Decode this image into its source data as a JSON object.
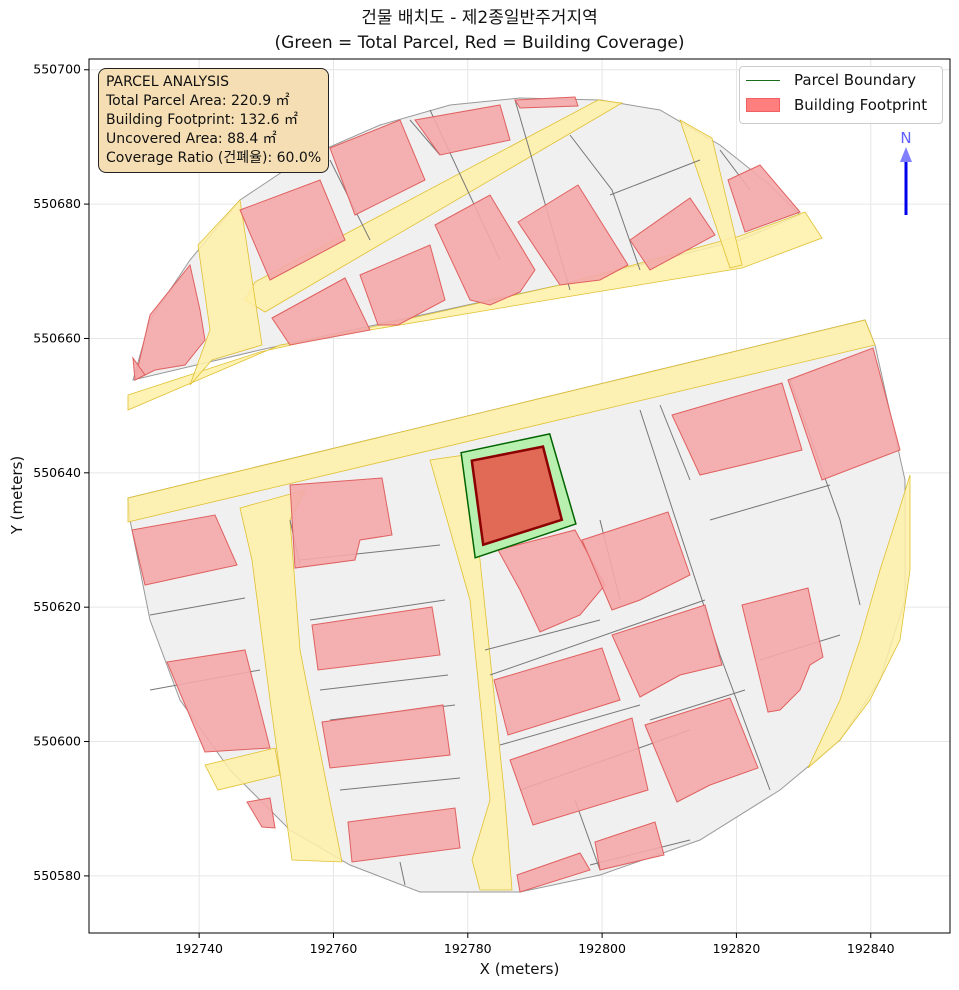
{
  "title": {
    "line1": "건물 배치도 - 제2종일반주거지역",
    "line2": "(Green = Total Parcel, Red = Building Coverage)"
  },
  "axes": {
    "xlabel": "X (meters)",
    "ylabel": "Y (meters)",
    "xlim": [
      192723.6,
      192851.8
    ],
    "ylim": [
      550571.5,
      550701.6
    ],
    "xticks": [
      192740,
      192760,
      192780,
      192800,
      192820,
      192840
    ],
    "yticks": [
      550580,
      550600,
      550620,
      550640,
      550660,
      550680,
      550700
    ],
    "grid": true
  },
  "annotation": {
    "heading": "PARCEL ANALYSIS",
    "total_area": "Total Parcel Area: 220.9 ㎡",
    "footprint": "Building Footprint: 132.6 ㎡",
    "uncovered": "Uncovered Area: 88.4 ㎡",
    "coverage": "Coverage Ratio (건폐율): 60.0%"
  },
  "legend": {
    "placement": "top-right",
    "items": [
      {
        "label": "Parcel Boundary",
        "color": "#1a6b1a"
      },
      {
        "label": "Building Footprint",
        "color": "#ff7f7f"
      }
    ]
  },
  "north_arrow": {
    "label": "N",
    "color": "#0000ee"
  },
  "chart_data": {
    "type": "map",
    "target_parcel": {
      "fill": "#b8f0b0",
      "edge": "#006400",
      "coords": [
        [
          192779.0,
          550643.0
        ],
        [
          192792.2,
          550645.8
        ],
        [
          192796.1,
          550632.4
        ],
        [
          192781.1,
          550627.35
        ]
      ]
    },
    "target_building": {
      "fill": "#e06a55",
      "edge": "#8b0000",
      "coords": [
        [
          192780.6,
          550641.8
        ],
        [
          192791.2,
          550643.9
        ],
        [
          192794.0,
          550633.0
        ],
        [
          192782.3,
          550629.3
        ]
      ]
    },
    "context_colors": {
      "parcels": "#f0f0f0",
      "roads": "#fff0a8",
      "buildings": "#f4a7a9"
    }
  }
}
